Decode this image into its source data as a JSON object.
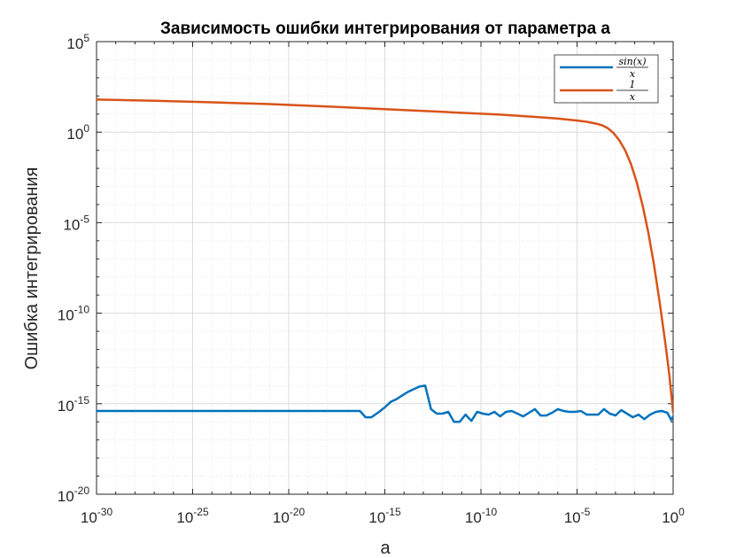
{
  "chart_data": {
    "type": "line",
    "title": "Зависимость ошибки интегрирования от параметра a",
    "xlabel": "a",
    "ylabel": "Ошибка интегрирования",
    "xscale": "log",
    "yscale": "log",
    "xlim_exp": [
      -30,
      0
    ],
    "ylim_exp": [
      -20,
      5
    ],
    "grid": "on, with minor grid",
    "legend_placement": "top-right",
    "x_ticks": [
      {
        "base": "10",
        "exp": "-30"
      },
      {
        "base": "10",
        "exp": "-25"
      },
      {
        "base": "10",
        "exp": "-20"
      },
      {
        "base": "10",
        "exp": "-15"
      },
      {
        "base": "10",
        "exp": "-10"
      },
      {
        "base": "10",
        "exp": "-5"
      },
      {
        "base": "10",
        "exp": "0"
      }
    ],
    "y_ticks": [
      {
        "base": "10",
        "exp": "-20"
      },
      {
        "base": "10",
        "exp": "-15"
      },
      {
        "base": "10",
        "exp": "-10"
      },
      {
        "base": "10",
        "exp": "-5"
      },
      {
        "base": "10",
        "exp": "0"
      },
      {
        "base": "10",
        "exp": "5"
      }
    ],
    "series": [
      {
        "name_num": "sin(x)",
        "name_den": "x",
        "color": "#0072bd",
        "points_log10": [
          [
            -30,
            -15.4
          ],
          [
            -25,
            -15.4
          ],
          [
            -20,
            -15.4
          ],
          [
            -16.3,
            -15.4
          ],
          [
            -16.0,
            -15.75
          ],
          [
            -15.7,
            -15.75
          ],
          [
            -15.3,
            -15.45
          ],
          [
            -15.0,
            -15.2
          ],
          [
            -14.7,
            -14.9
          ],
          [
            -14.4,
            -14.75
          ],
          [
            -14.1,
            -14.55
          ],
          [
            -13.8,
            -14.35
          ],
          [
            -13.5,
            -14.2
          ],
          [
            -13.2,
            -14.05
          ],
          [
            -12.9,
            -14.0
          ],
          [
            -12.6,
            -15.3
          ],
          [
            -12.3,
            -15.55
          ],
          [
            -12.0,
            -15.55
          ],
          [
            -11.7,
            -15.45
          ],
          [
            -11.4,
            -16.0
          ],
          [
            -11.1,
            -16.0
          ],
          [
            -10.8,
            -15.6
          ],
          [
            -10.5,
            -15.95
          ],
          [
            -10.2,
            -15.45
          ],
          [
            -9.9,
            -15.55
          ],
          [
            -9.6,
            -15.6
          ],
          [
            -9.3,
            -15.45
          ],
          [
            -9.0,
            -15.7
          ],
          [
            -8.7,
            -15.45
          ],
          [
            -8.4,
            -15.4
          ],
          [
            -8.1,
            -15.55
          ],
          [
            -7.8,
            -15.7
          ],
          [
            -7.5,
            -15.5
          ],
          [
            -7.2,
            -15.3
          ],
          [
            -6.9,
            -15.65
          ],
          [
            -6.6,
            -15.65
          ],
          [
            -6.3,
            -15.5
          ],
          [
            -6.0,
            -15.3
          ],
          [
            -5.7,
            -15.4
          ],
          [
            -5.4,
            -15.45
          ],
          [
            -5.1,
            -15.45
          ],
          [
            -4.8,
            -15.4
          ],
          [
            -4.5,
            -15.6
          ],
          [
            -4.2,
            -15.6
          ],
          [
            -3.9,
            -15.6
          ],
          [
            -3.6,
            -15.3
          ],
          [
            -3.3,
            -15.55
          ],
          [
            -3.0,
            -15.65
          ],
          [
            -2.7,
            -15.35
          ],
          [
            -2.4,
            -15.55
          ],
          [
            -2.1,
            -15.75
          ],
          [
            -1.8,
            -15.6
          ],
          [
            -1.5,
            -15.85
          ],
          [
            -1.2,
            -15.6
          ],
          [
            -0.9,
            -15.45
          ],
          [
            -0.6,
            -15.4
          ],
          [
            -0.3,
            -15.5
          ],
          [
            -0.1,
            -15.9
          ],
          [
            0.0,
            -15.7
          ]
        ]
      },
      {
        "name_num": "1",
        "name_den": "x",
        "color": "#d95319",
        "points_log10": [
          [
            -30,
            1.8
          ],
          [
            -27,
            1.73
          ],
          [
            -24,
            1.65
          ],
          [
            -21,
            1.55
          ],
          [
            -18,
            1.42
          ],
          [
            -15,
            1.27
          ],
          [
            -12,
            1.12
          ],
          [
            -9,
            0.97
          ],
          [
            -7,
            0.83
          ],
          [
            -6,
            0.75
          ],
          [
            -5,
            0.64
          ],
          [
            -4.5,
            0.57
          ],
          [
            -4,
            0.47
          ],
          [
            -3.7,
            0.38
          ],
          [
            -3.4,
            0.22
          ],
          [
            -3.1,
            -0.05
          ],
          [
            -2.8,
            -0.45
          ],
          [
            -2.5,
            -1.0
          ],
          [
            -2.2,
            -1.75
          ],
          [
            -1.9,
            -2.75
          ],
          [
            -1.6,
            -4.0
          ],
          [
            -1.3,
            -5.5
          ],
          [
            -1.0,
            -7.3
          ],
          [
            -0.7,
            -9.4
          ],
          [
            -0.4,
            -11.7
          ],
          [
            -0.2,
            -13.4
          ],
          [
            0.0,
            -15.5
          ]
        ]
      }
    ]
  }
}
